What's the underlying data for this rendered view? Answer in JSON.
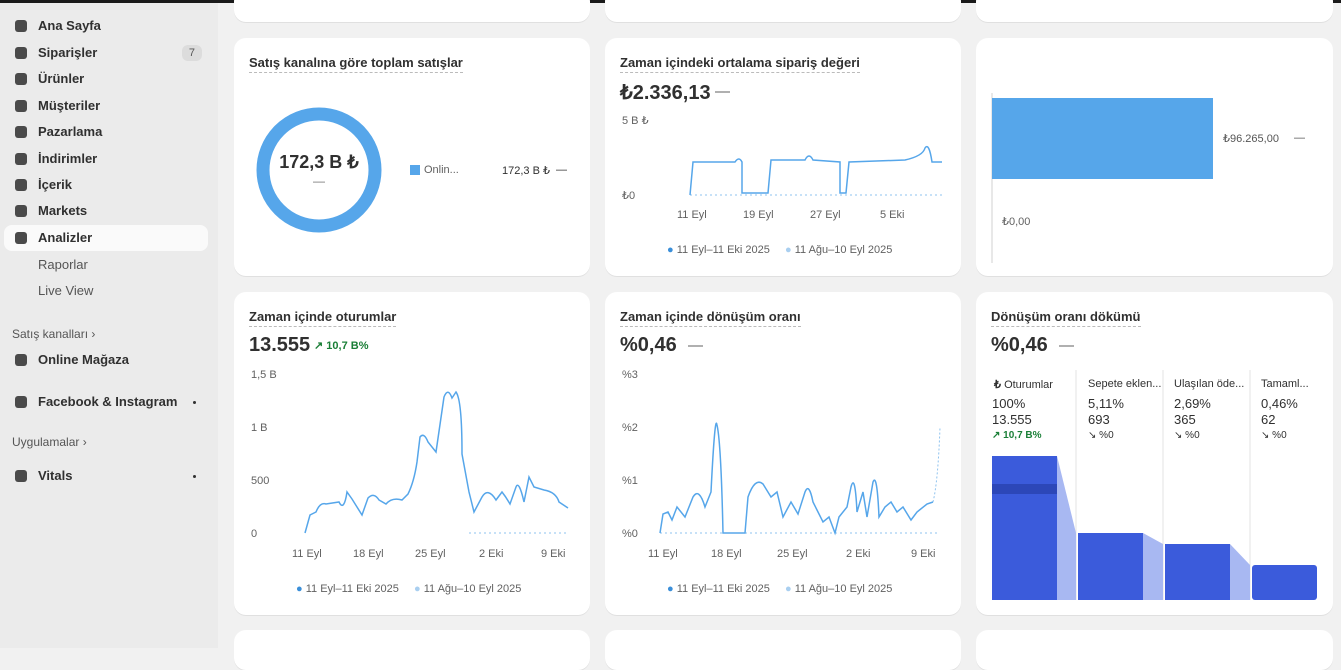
{
  "sidebar": {
    "nav": [
      {
        "label": "Ana Sayfa"
      },
      {
        "label": "Siparişler",
        "badge": "7"
      },
      {
        "label": "Ürünler"
      },
      {
        "label": "Müşteriler"
      },
      {
        "label": "Pazarlama"
      },
      {
        "label": "İndirimler"
      },
      {
        "label": "İçerik"
      },
      {
        "label": "Markets"
      },
      {
        "label": "Analizler"
      }
    ],
    "subnav": [
      "Raporlar",
      "Live View"
    ],
    "sales_channels": {
      "heading": "Satış kanalları",
      "items": [
        "Online Mağaza",
        "Facebook & Instagram"
      ]
    },
    "apps": {
      "heading": "Uygulamalar",
      "items": [
        "Vitals"
      ]
    }
  },
  "cards": [
    {
      "title": "Satış kanalına göre toplam satışlar",
      "center_value": "172,3 B ₺",
      "center_sub": "—",
      "legend": {
        "name": "Onlin...",
        "value": "172,3 B ₺",
        "change": "—"
      }
    },
    {
      "title": "Zaman içindeki ortalama sipariş değeri",
      "value": "₺2.336,13",
      "change": "—",
      "yticks": [
        "5 B ₺",
        "₺0"
      ],
      "xticks": [
        "11 Eyl",
        "19 Eyl",
        "27 Eyl",
        "5 Eki"
      ],
      "legend": [
        "11 Eyl–11 Eki 2025",
        "11 Ağu–10 Eyl 2025"
      ]
    },
    {
      "bar_label": "₺96.265,00",
      "bar_change": "—",
      "axis_label": "₺0,00"
    },
    {
      "title": "Zaman içinde oturumlar",
      "value": "13.555",
      "change": "10,7 B%",
      "yticks": [
        "1,5 B",
        "1 B",
        "500",
        "0"
      ],
      "xticks": [
        "11 Eyl",
        "18 Eyl",
        "25 Eyl",
        "2 Eki",
        "9 Eki"
      ],
      "legend": [
        "11 Eyl–11 Eki 2025",
        "11 Ağu–10 Eyl 2025"
      ]
    },
    {
      "title": "Zaman içinde dönüşüm oranı",
      "value": "%0,46",
      "change": "—",
      "yticks": [
        "%3",
        "%2",
        "%1",
        "%0"
      ],
      "xticks": [
        "11 Eyl",
        "18 Eyl",
        "25 Eyl",
        "2 Eki",
        "9 Eki"
      ],
      "legend": [
        "11 Eyl–11 Eki 2025",
        "11 Ağu–10 Eyl 2025"
      ]
    },
    {
      "title": "Dönüşüm oranı dökümü",
      "value": "%0,46",
      "change": "—",
      "steps": [
        {
          "name": "Oturumlar",
          "percent": "100%",
          "count": "13.555",
          "change": "10,7 B%"
        },
        {
          "name": "Sepete eklen...",
          "percent": "5,11%",
          "count": "693",
          "change": "%0"
        },
        {
          "name": "Ulaşılan öde...",
          "percent": "2,69%",
          "count": "365",
          "change": "%0"
        },
        {
          "name": "Tamaml...",
          "percent": "0,46%",
          "count": "62",
          "change": "%0"
        }
      ]
    }
  ]
}
